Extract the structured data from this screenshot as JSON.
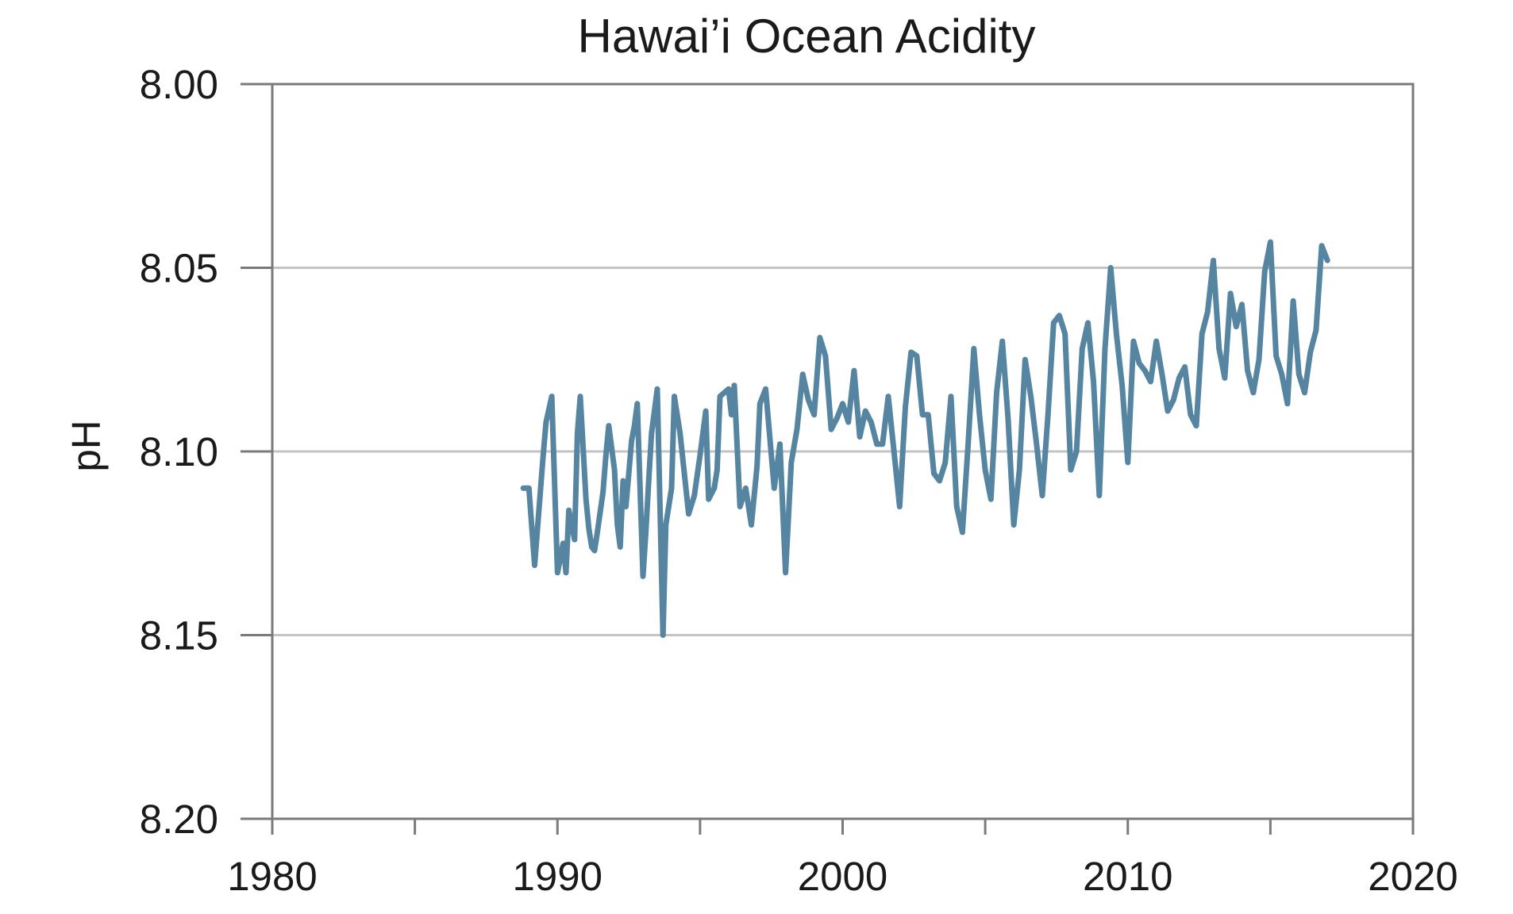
{
  "chart_data": {
    "type": "line",
    "title": "Hawai’i Ocean Acidity",
    "xlabel": "",
    "ylabel": "pH",
    "xlim": [
      1980,
      2020
    ],
    "ylim": [
      8.0,
      8.2
    ],
    "y_inverted": true,
    "x_ticks": [
      "1980",
      "1990",
      "2000",
      "2010",
      "2020"
    ],
    "x_tick_values": [
      1980,
      1990,
      2000,
      2010,
      2020
    ],
    "x_minor_ticks": [
      1985,
      1995,
      2005,
      2015
    ],
    "y_ticks": [
      "8.00",
      "8.05",
      "8.10",
      "8.15",
      "8.20"
    ],
    "y_tick_values": [
      8.0,
      8.05,
      8.1,
      8.15,
      8.2
    ],
    "grid": "horizontal",
    "colors": {
      "series": "#5585A0",
      "axis": "#7a7a7a",
      "grid": "#c4c4c4"
    },
    "series": [
      {
        "name": "",
        "x": [
          1988.8,
          1989.0,
          1989.2,
          1989.3,
          1989.5,
          1989.6,
          1989.8,
          1989.9,
          1990.0,
          1990.2,
          1990.3,
          1990.4,
          1990.6,
          1990.7,
          1990.8,
          1991.0,
          1991.1,
          1991.2,
          1991.3,
          1991.4,
          1991.6,
          1991.7,
          1991.8,
          1992.0,
          1992.1,
          1992.2,
          1992.3,
          1992.4,
          1992.6,
          1992.7,
          1992.8,
          1993.0,
          1993.1,
          1993.2,
          1993.3,
          1993.5,
          1993.7,
          1993.8,
          1994.0,
          1994.1,
          1994.3,
          1994.6,
          1994.8,
          1995.0,
          1995.2,
          1995.3,
          1995.5,
          1995.6,
          1995.7,
          1996.0,
          1996.1,
          1996.2,
          1996.4,
          1996.6,
          1996.8,
          1997.0,
          1997.1,
          1997.3,
          1997.6,
          1997.8,
          1998.0,
          1998.2,
          1998.4,
          1998.6,
          1998.8,
          1999.0,
          1999.2,
          1999.4,
          1999.6,
          1999.8,
          2000.0,
          2000.2,
          2000.4,
          2000.6,
          2000.8,
          2001.0,
          2001.2,
          2001.4,
          2001.6,
          2001.8,
          2002.0,
          2002.2,
          2002.4,
          2002.6,
          2002.8,
          2003.0,
          2003.2,
          2003.4,
          2003.6,
          2003.8,
          2004.0,
          2004.2,
          2004.4,
          2004.6,
          2004.8,
          2005.0,
          2005.2,
          2005.4,
          2005.6,
          2005.8,
          2006.0,
          2006.2,
          2006.4,
          2006.6,
          2006.8,
          2007.0,
          2007.2,
          2007.4,
          2007.6,
          2007.8,
          2008.0,
          2008.2,
          2008.4,
          2008.6,
          2008.8,
          2009.0,
          2009.2,
          2009.4,
          2009.6,
          2009.8,
          2010.0,
          2010.2,
          2010.4,
          2010.6,
          2010.8,
          2011.0,
          2011.2,
          2011.4,
          2011.6,
          2011.8,
          2012.0,
          2012.2,
          2012.4,
          2012.6,
          2012.8,
          2013.0,
          2013.2,
          2013.4,
          2013.6,
          2013.8,
          2014.0,
          2014.2,
          2014.4,
          2014.6,
          2014.8,
          2015.0,
          2015.2,
          2015.4,
          2015.6,
          2015.8,
          2016.0,
          2016.2,
          2016.4,
          2016.6,
          2016.8,
          2017.0
        ],
        "y": [
          8.11,
          8.11,
          8.131,
          8.121,
          8.101,
          8.092,
          8.085,
          8.109,
          8.133,
          8.125,
          8.133,
          8.116,
          8.124,
          8.095,
          8.085,
          8.113,
          8.121,
          8.126,
          8.127,
          8.122,
          8.111,
          8.101,
          8.093,
          8.105,
          8.12,
          8.126,
          8.108,
          8.115,
          8.097,
          8.093,
          8.087,
          8.134,
          8.122,
          8.108,
          8.095,
          8.083,
          8.15,
          8.12,
          8.11,
          8.085,
          8.095,
          8.117,
          8.112,
          8.101,
          8.089,
          8.113,
          8.11,
          8.105,
          8.085,
          8.083,
          8.09,
          8.082,
          8.115,
          8.11,
          8.12,
          8.104,
          8.087,
          8.083,
          8.11,
          8.098,
          8.133,
          8.103,
          8.094,
          8.079,
          8.086,
          8.09,
          8.069,
          8.074,
          8.094,
          8.091,
          8.087,
          8.092,
          8.078,
          8.096,
          8.089,
          8.092,
          8.098,
          8.098,
          8.085,
          8.1,
          8.115,
          8.088,
          8.073,
          8.074,
          8.09,
          8.09,
          8.106,
          8.108,
          8.103,
          8.085,
          8.115,
          8.122,
          8.098,
          8.072,
          8.09,
          8.105,
          8.113,
          8.084,
          8.07,
          8.091,
          8.12,
          8.105,
          8.075,
          8.085,
          8.098,
          8.112,
          8.09,
          8.065,
          8.063,
          8.068,
          8.105,
          8.1,
          8.072,
          8.065,
          8.081,
          8.112,
          8.072,
          8.05,
          8.068,
          8.082,
          8.103,
          8.07,
          8.076,
          8.078,
          8.081,
          8.07,
          8.079,
          8.089,
          8.086,
          8.08,
          8.077,
          8.09,
          8.093,
          8.068,
          8.062,
          8.048,
          8.072,
          8.08,
          8.057,
          8.066,
          8.06,
          8.078,
          8.084,
          8.075,
          8.051,
          8.043,
          8.074,
          8.079,
          8.087,
          8.059,
          8.079,
          8.084,
          8.073,
          8.067,
          8.044,
          8.048
        ]
      }
    ]
  }
}
